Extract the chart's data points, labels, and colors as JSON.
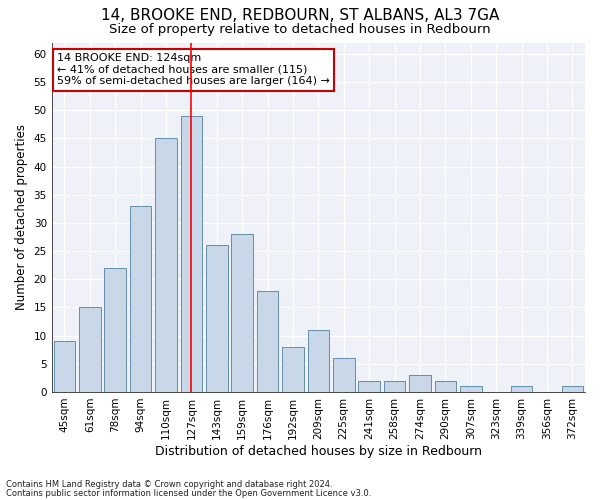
{
  "title1": "14, BROOKE END, REDBOURN, ST ALBANS, AL3 7GA",
  "title2": "Size of property relative to detached houses in Redbourn",
  "xlabel": "Distribution of detached houses by size in Redbourn",
  "ylabel": "Number of detached properties",
  "footnote1": "Contains HM Land Registry data © Crown copyright and database right 2024.",
  "footnote2": "Contains public sector information licensed under the Open Government Licence v3.0.",
  "categories": [
    "45sqm",
    "61sqm",
    "78sqm",
    "94sqm",
    "110sqm",
    "127sqm",
    "143sqm",
    "159sqm",
    "176sqm",
    "192sqm",
    "209sqm",
    "225sqm",
    "241sqm",
    "258sqm",
    "274sqm",
    "290sqm",
    "307sqm",
    "323sqm",
    "339sqm",
    "356sqm",
    "372sqm"
  ],
  "values": [
    9,
    15,
    22,
    33,
    45,
    49,
    26,
    28,
    18,
    8,
    11,
    6,
    2,
    2,
    3,
    2,
    1,
    0,
    1,
    0,
    1
  ],
  "bar_color": "#c8d8e8",
  "bar_edge_color": "#5080a0",
  "red_line_x": 5,
  "annotation_line1": "14 BROOKE END: 124sqm",
  "annotation_line2": "← 41% of detached houses are smaller (115)",
  "annotation_line3": "59% of semi-detached houses are larger (164) →",
  "annotation_box_color": "#ffffff",
  "annotation_box_edge": "#cc0000",
  "ylim": [
    0,
    62
  ],
  "yticks": [
    0,
    5,
    10,
    15,
    20,
    25,
    30,
    35,
    40,
    45,
    50,
    55,
    60
  ],
  "background_color": "#eef2f8",
  "grid_color": "#ffffff",
  "title1_fontsize": 11,
  "title2_fontsize": 9.5,
  "xlabel_fontsize": 9,
  "ylabel_fontsize": 8.5,
  "tick_fontsize": 7.5,
  "annotation_fontsize": 8,
  "footnote_fontsize": 6
}
